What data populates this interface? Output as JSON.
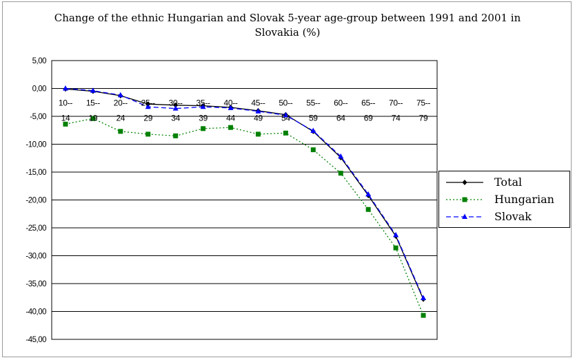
{
  "chart_data": {
    "type": "line",
    "title": "Change of the ethnic Hungarian and Slovak 5-year age-group between 1991 and 2001 in Slovakia (%)",
    "title_lines": [
      "Change of the ethnic Hungarian and Slovak 5-year age-group between 1991 and 2001 in",
      "Slovakia (%)"
    ],
    "xlabel": "",
    "ylabel": "",
    "ylim": [
      -45,
      5
    ],
    "yticks": [
      5,
      0,
      -5,
      -10,
      -15,
      -20,
      -25,
      -30,
      -35,
      -40,
      -45
    ],
    "ytick_labels": [
      "5,00",
      "0,00",
      "-5,00",
      "-10,00",
      "-15,00",
      "-20,00",
      "-25,00",
      "-30,00",
      "-35,00",
      "-40,00",
      "-45,00"
    ],
    "categories": [
      "10-14",
      "15-19",
      "20-24",
      "25-29",
      "30-34",
      "35-39",
      "40-44",
      "45-49",
      "50-54",
      "55-59",
      "60-64",
      "65-69",
      "70-74",
      "75-79"
    ],
    "category_labels_top": [
      "10--",
      "15--",
      "20--",
      "25--",
      "30--",
      "35--",
      "40--",
      "45--",
      "50--",
      "55--",
      "60--",
      "65--",
      "70--",
      "75--"
    ],
    "category_labels_bottom": [
      "14",
      "19",
      "24",
      "29",
      "34",
      "39",
      "44",
      "49",
      "54",
      "59",
      "64",
      "69",
      "74",
      "79"
    ],
    "grid": "horizontal",
    "legend_position": "right",
    "series": [
      {
        "name": "Total",
        "color": "#000000",
        "line": "solid",
        "marker": "diamond",
        "values": [
          -0.1,
          -0.5,
          -1.3,
          -2.8,
          -3.0,
          -3.1,
          -3.4,
          -4.0,
          -4.7,
          -7.7,
          -12.4,
          -19.2,
          -26.5,
          -37.8
        ]
      },
      {
        "name": "Hungarian",
        "color": "#008000",
        "line": "dotted",
        "marker": "square",
        "values": [
          -6.4,
          -5.4,
          -7.7,
          -8.2,
          -8.5,
          -7.2,
          -7.0,
          -8.2,
          -8.0,
          -11.0,
          -15.2,
          -21.7,
          -28.6,
          -40.7
        ]
      },
      {
        "name": "Slovak",
        "color": "#0000ff",
        "line": "dashed",
        "marker": "triangle",
        "values": [
          0.0,
          -0.4,
          -1.2,
          -3.3,
          -3.6,
          -3.3,
          -3.5,
          -4.1,
          -4.8,
          -7.6,
          -12.2,
          -19.0,
          -26.3,
          -37.6
        ]
      }
    ]
  }
}
